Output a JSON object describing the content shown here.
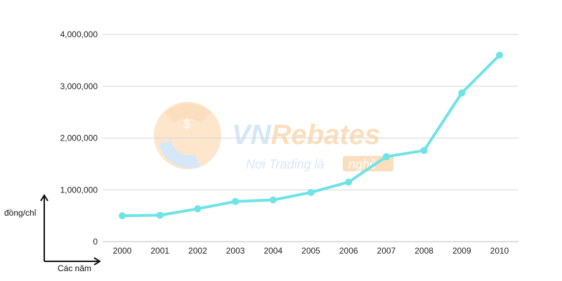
{
  "chart_data": {
    "type": "line",
    "title": "",
    "xlabel": "Các năm",
    "ylabel": "đồng/chỉ",
    "categories": [
      "2000",
      "2001",
      "2002",
      "2003",
      "2004",
      "2005",
      "2006",
      "2007",
      "2008",
      "2009",
      "2010"
    ],
    "series": [
      {
        "values": [
          500000,
          510000,
          635000,
          775000,
          805000,
          950000,
          1150000,
          1640000,
          1760000,
          2870000,
          3600000
        ]
      }
    ],
    "ylim": [
      0,
      4000000
    ],
    "yticks": [
      0,
      1000000,
      2000000,
      3000000,
      4000000
    ],
    "ytick_labels": [
      "0",
      "1,000,000",
      "2,000,000",
      "3,000,000",
      "4,000,000"
    ],
    "grid": true,
    "legend": "none",
    "line_color": "#6fe3e6"
  },
  "watermark": {
    "brand_a": "VN",
    "brand_b": "Rebates",
    "tagline": "Nơi Trading là",
    "tagline_badge": "nghề",
    "color_blue": "#cfe3f7",
    "color_orange": "#fbd9b2"
  }
}
